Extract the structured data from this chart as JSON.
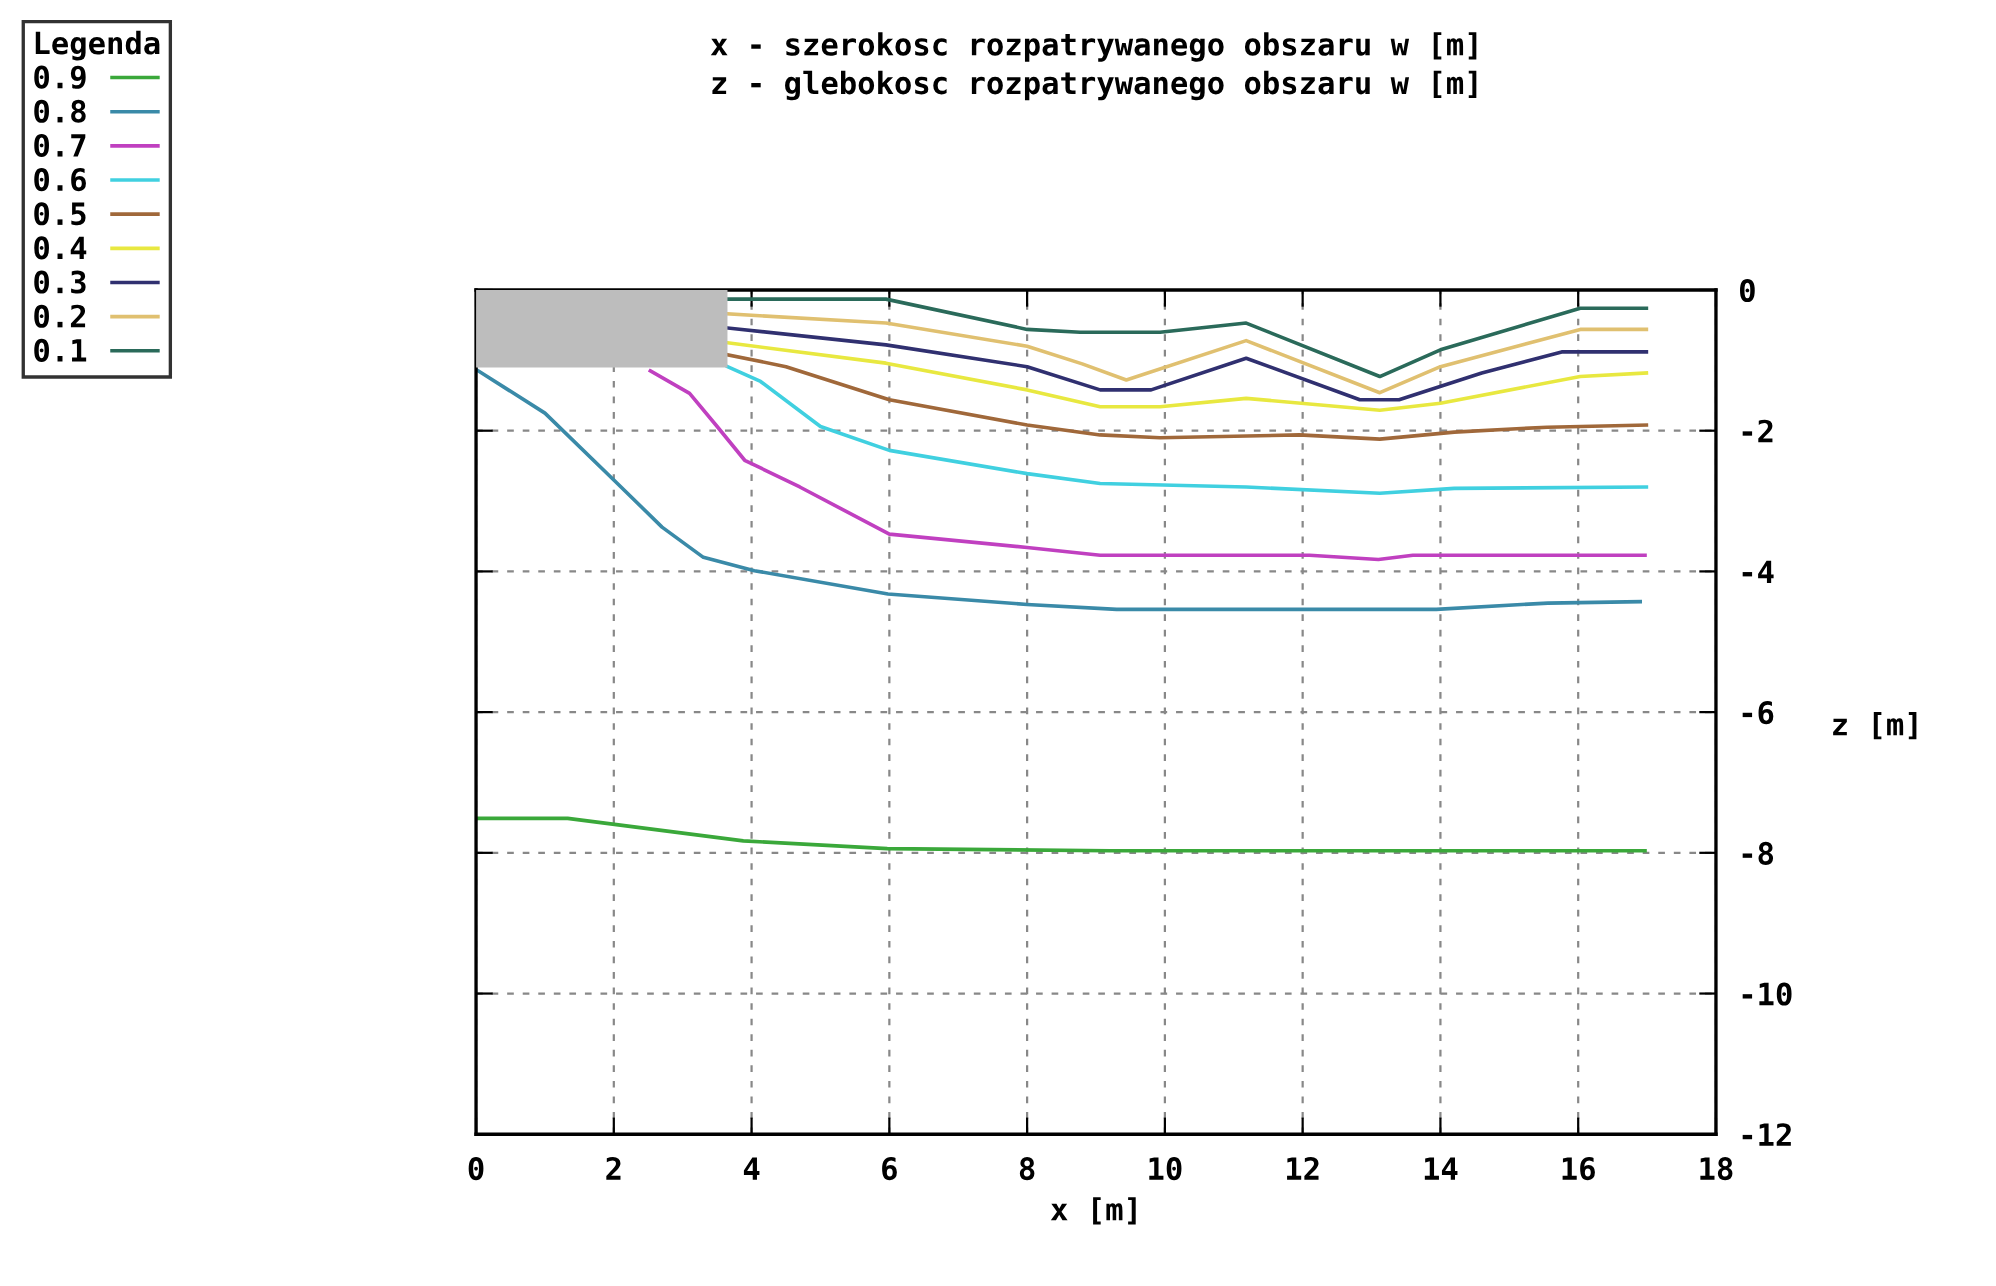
{
  "chart_data": {
    "type": "line",
    "title": "x - szerokosc rozpatrywanego obszaru w [m]",
    "subtitle": "z - glebokosc rozpatrywanego obszaru w [m]",
    "xlabel": "x [m]",
    "ylabel": "z [m]",
    "legend_title": "Legenda",
    "legend": "top left",
    "grid": true,
    "line_style": "solid",
    "marker": "none",
    "xlim": [
      0,
      18
    ],
    "xticks": [
      0,
      2,
      4,
      6,
      8,
      10,
      12,
      14,
      16,
      18
    ],
    "ylim": [
      -12,
      0
    ],
    "yticks": [
      0,
      -2,
      -4,
      -6,
      -8,
      -10,
      -12
    ],
    "series": [
      {
        "type": "area",
        "color": "#bdbdbd",
        "x": [
          0,
          3.65
        ],
        "values": [
          -1.1,
          -1.1
        ]
      },
      {
        "name": "0.9",
        "color": "#3aa83a",
        "x": [
          0,
          1.33,
          3.88,
          5.97,
          9.2,
          16.97
        ],
        "values": [
          -7.51,
          -7.51,
          -7.83,
          -7.94,
          -7.97,
          -7.97
        ]
      },
      {
        "name": "0.8",
        "color": "#3a8aa8",
        "x": [
          0,
          1.0,
          2.0,
          2.7,
          3.3,
          4.04,
          5.98,
          8.0,
          9.3,
          11.96,
          13.94,
          15.56,
          16.9
        ],
        "values": [
          -1.13,
          -1.75,
          -2.7,
          -3.37,
          -3.8,
          -3.99,
          -4.32,
          -4.47,
          -4.54,
          -4.54,
          -4.54,
          -4.45,
          -4.43
        ]
      },
      {
        "name": "0.7",
        "color": "#c040c0",
        "x": [
          2.53,
          3.1,
          3.5,
          3.9,
          4.7,
          6.0,
          8.0,
          9.06,
          12.1,
          13.1,
          13.6,
          16.97
        ],
        "values": [
          -1.15,
          -1.47,
          -1.94,
          -2.42,
          -2.8,
          -3.47,
          -3.66,
          -3.77,
          -3.77,
          -3.83,
          -3.77,
          -3.77
        ]
      },
      {
        "name": "0.6",
        "color": "#40d0e0",
        "x": [
          3.65,
          4.13,
          5.0,
          6.0,
          8.0,
          9.06,
          11.18,
          13.12,
          14.2,
          16.99
        ],
        "values": [
          -1.09,
          -1.3,
          -1.94,
          -2.28,
          -2.61,
          -2.75,
          -2.8,
          -2.89,
          -2.82,
          -2.8
        ]
      },
      {
        "name": "0.5",
        "color": "#a0683a",
        "x": [
          3.65,
          4.5,
          6.0,
          8.0,
          9.06,
          9.93,
          11.95,
          13.12,
          14.2,
          15.55,
          16.99
        ],
        "values": [
          -0.92,
          -1.09,
          -1.56,
          -1.92,
          -2.06,
          -2.1,
          -2.06,
          -2.12,
          -2.02,
          -1.95,
          -1.92
        ]
      },
      {
        "name": "0.4",
        "color": "#e8e840",
        "x": [
          3.65,
          5.95,
          8.0,
          9.06,
          9.93,
          11.18,
          13.12,
          14.0,
          16.03,
          16.99
        ],
        "values": [
          -0.75,
          -1.04,
          -1.42,
          -1.66,
          -1.66,
          -1.54,
          -1.71,
          -1.61,
          -1.23,
          -1.18
        ]
      },
      {
        "name": "0.3",
        "color": "#303070",
        "x": [
          3.65,
          5.95,
          8.0,
          9.06,
          9.8,
          11.18,
          12.83,
          13.4,
          14.6,
          15.76,
          16.99
        ],
        "values": [
          -0.54,
          -0.78,
          -1.09,
          -1.42,
          -1.42,
          -0.97,
          -1.56,
          -1.56,
          -1.18,
          -0.88,
          -0.88
        ]
      },
      {
        "name": "0.2",
        "color": "#e0c070",
        "x": [
          3.65,
          5.95,
          8.0,
          8.8,
          9.44,
          11.18,
          13.12,
          14.0,
          16.03,
          16.99
        ],
        "values": [
          -0.34,
          -0.47,
          -0.8,
          -1.05,
          -1.28,
          -0.72,
          -1.46,
          -1.09,
          -0.56,
          -0.56
        ]
      },
      {
        "name": "0.1",
        "color": "#2a6a5a",
        "x": [
          3.65,
          5.95,
          8.0,
          8.77,
          9.93,
          11.18,
          13.12,
          14.0,
          16.03,
          16.99
        ],
        "values": [
          -0.13,
          -0.13,
          -0.56,
          -0.6,
          -0.6,
          -0.47,
          -1.23,
          -0.85,
          -0.26,
          -0.26
        ]
      }
    ]
  }
}
